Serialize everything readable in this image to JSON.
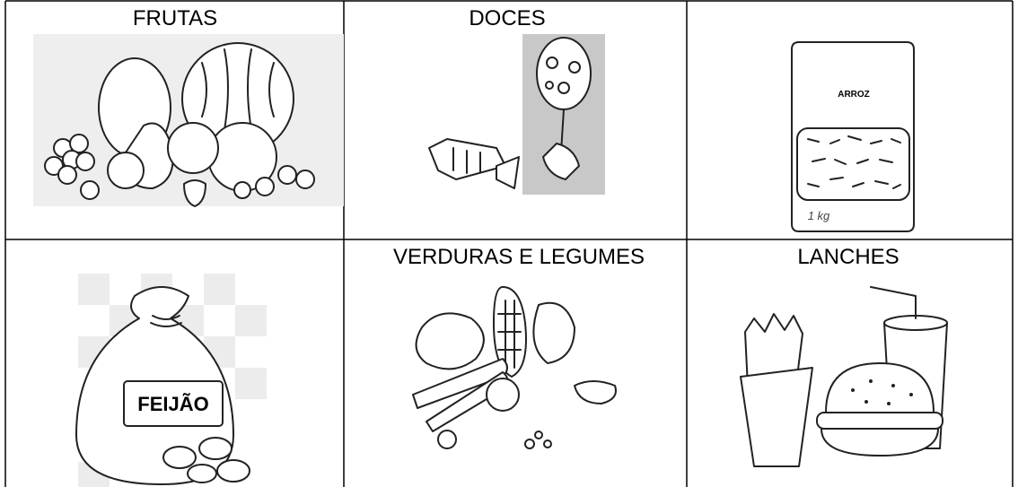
{
  "table": {
    "rows": [
      [
        {
          "title": "FRUTAS"
        },
        {
          "title": "DOCES"
        },
        {
          "image_text": [
            "ARROZ",
            "1 kg"
          ]
        }
      ],
      [
        {
          "image_text": [
            "FEIJÃO"
          ]
        },
        {
          "title": "VERDURAS E LEGUMES"
        },
        {
          "title": "LANCHES"
        }
      ]
    ]
  }
}
